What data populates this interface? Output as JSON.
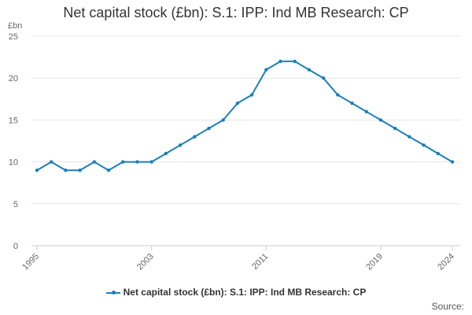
{
  "chart_data": {
    "type": "line",
    "title": "Net capital stock (£bn): S.1: IPP: Ind MB Research: CP",
    "ylabel": "£bn",
    "xlabel": "",
    "ylim": [
      0,
      25
    ],
    "y_ticks": [
      0,
      5,
      10,
      15,
      20,
      25
    ],
    "x_ticks": [
      "1995",
      "2003",
      "2011",
      "2019",
      "2024"
    ],
    "grid": "horizontal",
    "legend_position": "bottom",
    "series": [
      {
        "name": "Net capital stock (£bn): S.1: IPP: Ind MB Research: CP",
        "color": "#1b7fba",
        "x": [
          1995,
          1996,
          1997,
          1998,
          1999,
          2000,
          2001,
          2002,
          2003,
          2004,
          2005,
          2006,
          2007,
          2008,
          2009,
          2010,
          2011,
          2012,
          2013,
          2014,
          2015,
          2016,
          2017,
          2018,
          2019,
          2020,
          2021,
          2022,
          2023,
          2024
        ],
        "values": [
          9,
          10,
          9,
          9,
          10,
          9,
          10,
          10,
          10,
          11,
          12,
          13,
          14,
          15,
          17,
          18,
          21,
          22,
          22,
          21,
          20,
          18,
          17,
          16,
          15,
          14,
          13,
          12,
          11,
          10
        ]
      }
    ]
  },
  "footer": {
    "source_label": "Source:"
  }
}
